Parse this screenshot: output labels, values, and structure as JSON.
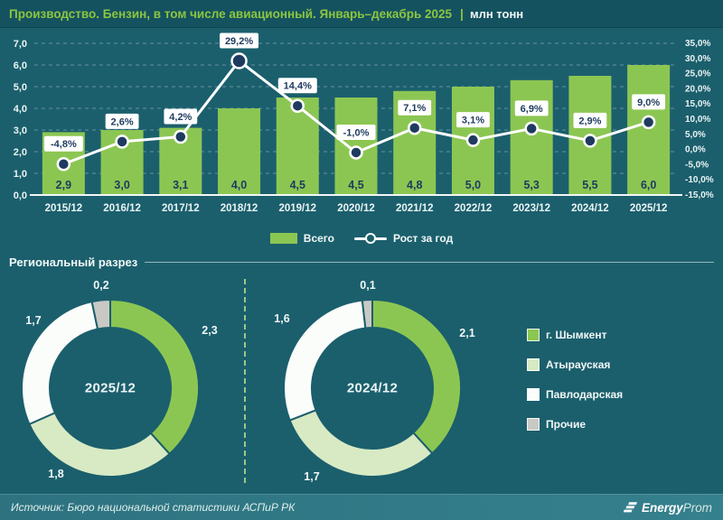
{
  "header": {
    "title": "Производство. Бензин, в том числе авиационный. Январь–декабрь 2025",
    "divider": "|",
    "unit": "млн тонн"
  },
  "chart_data": [
    {
      "type": "bar",
      "name": "production-by-year",
      "categories": [
        "2015/12",
        "2016/12",
        "2017/12",
        "2018/12",
        "2019/12",
        "2020/12",
        "2021/12",
        "2022/12",
        "2023/12",
        "2024/12",
        "2025/12"
      ],
      "series": [
        {
          "name": "Всего",
          "type": "bar",
          "color": "#8CC652",
          "values": [
            2.9,
            3.0,
            3.1,
            4.0,
            4.5,
            4.5,
            4.8,
            5.0,
            5.3,
            5.5,
            6.0
          ],
          "labels": [
            "2,9",
            "3,0",
            "3,1",
            "4,0",
            "4,5",
            "4,5",
            "4,8",
            "5,0",
            "5,3",
            "5,5",
            "6,0"
          ]
        },
        {
          "name": "Рост за год",
          "type": "line",
          "color": "#FFFFFF",
          "values": [
            -4.8,
            2.6,
            4.2,
            29.2,
            14.4,
            -1.0,
            7.1,
            3.1,
            6.9,
            2.9,
            9.0
          ],
          "labels": [
            "-4,8%",
            "2,6%",
            "4,2%",
            "29,2%",
            "14,4%",
            "-1,0%",
            "7,1%",
            "3,1%",
            "6,9%",
            "2,9%",
            "9,0%"
          ]
        }
      ],
      "left_axis": {
        "min": 0,
        "max": 7,
        "step": 1,
        "tick_labels": [
          "0,0",
          "1,0",
          "2,0",
          "3,0",
          "4,0",
          "5,0",
          "6,0",
          "7,0"
        ]
      },
      "right_axis": {
        "min": -15,
        "max": 35,
        "step": 5,
        "tick_labels": [
          "-15,0%",
          "-10,0%",
          "-5,0%",
          "0,0%",
          "5,0%",
          "10,0%",
          "15,0%",
          "20,0%",
          "25,0%",
          "30,0%",
          "35,0%"
        ]
      },
      "grid": true,
      "legend_position": "bottom"
    },
    {
      "type": "pie",
      "name": "regional-2025",
      "title": "2025/12",
      "categories": [
        "г. Шымкент",
        "Атырауская",
        "Павлодарская",
        "Прочие"
      ],
      "values": [
        2.3,
        1.8,
        1.7,
        0.2
      ],
      "labels": [
        "2,3",
        "1,8",
        "1,7",
        "0,2"
      ],
      "colors": [
        "#8CC652",
        "#D8EAC4",
        "#FBFDFA",
        "#C8C9C4"
      ]
    },
    {
      "type": "pie",
      "name": "regional-2024",
      "title": "2024/12",
      "categories": [
        "г. Шымкент",
        "Атырауская",
        "Павлодарская",
        "Прочие"
      ],
      "values": [
        2.1,
        1.7,
        1.6,
        0.1
      ],
      "labels": [
        "2,1",
        "1,7",
        "1,6",
        "0,1"
      ],
      "colors": [
        "#8CC652",
        "#D8EAC4",
        "#FBFDFA",
        "#C8C9C4"
      ]
    }
  ],
  "section": {
    "title": "Региональный разрез"
  },
  "donut_legend": {
    "items": [
      {
        "label": "г. Шымкент",
        "color": "#8CC652"
      },
      {
        "label": "Атырауская",
        "color": "#D8EAC4"
      },
      {
        "label": "Павлодарская",
        "color": "#FBFDFA"
      },
      {
        "label": "Прочие",
        "color": "#C8C9C4"
      }
    ]
  },
  "footer": {
    "source": "Источник: Бюро национальной статистики АСПиР РК",
    "logo_bold": "Energy",
    "logo_light": "Prom"
  },
  "colors": {
    "background": "#1B5F6D",
    "header_bg": "#155260",
    "footer_bg": "#2F7683",
    "accent_green": "#8CC63F",
    "bar_green": "#8CC652",
    "navy": "#1E3A5F",
    "axis_text": "#EAF4F3",
    "grid_line": "rgba(255,255,255,0.32)"
  }
}
